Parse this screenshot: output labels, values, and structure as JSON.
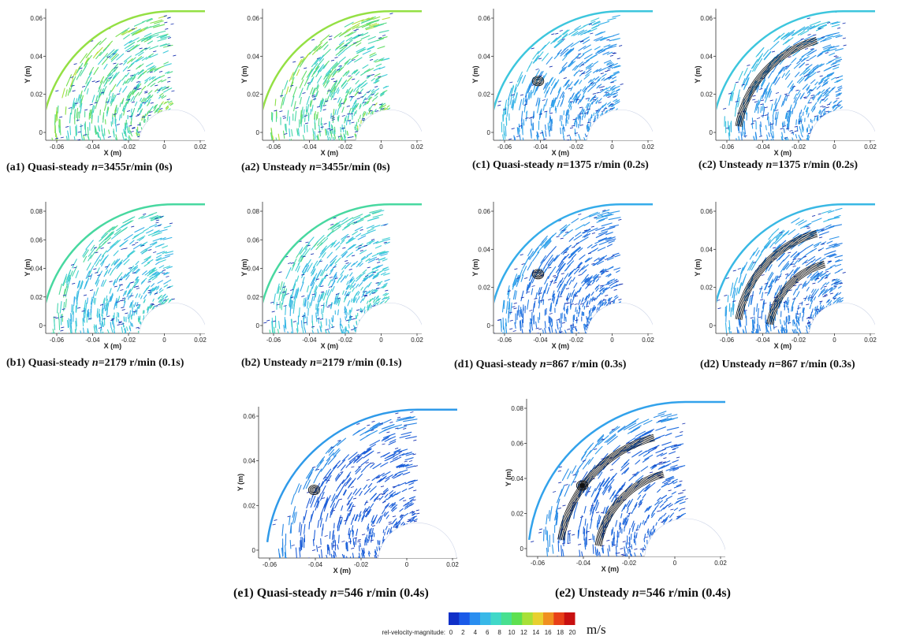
{
  "panels": [
    {
      "id": "a1",
      "label": "(a1) Quasi-steady ",
      "n": "n",
      "value": "=3455r/min  (0s)",
      "ylabel": "Y (m)",
      "xlabel": "X (m)",
      "yticks": [
        "0.06",
        "0.04",
        "0.02",
        "0"
      ],
      "xticks": [
        "-0.06",
        "-0.04",
        "-0.02",
        "0",
        "0.02"
      ],
      "speed": 0.75,
      "vortex": 0,
      "separation": 0
    },
    {
      "id": "a2",
      "label": "(a2) Unsteady ",
      "n": "n",
      "value": "=3455r/min (0s)",
      "ylabel": "Y (m)",
      "xlabel": "X (m)",
      "yticks": [
        "0.06",
        "0.04",
        "0.02",
        "0"
      ],
      "xticks": [
        "-0.06",
        "-0.04",
        "-0.02",
        "0",
        "0.02"
      ],
      "speed": 0.75,
      "vortex": 0,
      "separation": 0
    },
    {
      "id": "c1",
      "label": "(c1) Quasi-steady ",
      "n": "n",
      "value": "=1375 r/min (0.2s)",
      "ylabel": "Y (m)",
      "xlabel": "X (m)",
      "yticks": [
        "0.06",
        "0.04",
        "0.02",
        "0"
      ],
      "xticks": [
        "-0.06",
        "-0.04",
        "-0.02",
        "0",
        "0.02"
      ],
      "speed": 0.35,
      "vortex": 1,
      "separation": 0
    },
    {
      "id": "c2",
      "label": "(c2) Unsteady ",
      "n": "n",
      "value": "=1375 r/min (0.2s)",
      "ylabel": "Y (m)",
      "xlabel": "X (m)",
      "yticks": [
        "0.06",
        "0.04",
        "0.02",
        "0"
      ],
      "xticks": [
        "-0.06",
        "-0.04",
        "-0.02",
        "0",
        "0.02"
      ],
      "speed": 0.35,
      "vortex": 0,
      "separation": 1
    },
    {
      "id": "b1",
      "label": "(b1) Quasi-steady ",
      "n": "n",
      "value": "=2179 r/min (0.1s)",
      "ylabel": "Y (m)",
      "xlabel": "X (m)",
      "yticks": [
        "0.08",
        "0.06",
        "0.04",
        "0.02",
        "0"
      ],
      "xticks": [
        "-0.06",
        "-0.04",
        "-0.02",
        "0",
        "0.02"
      ],
      "speed": 0.55,
      "vortex": 0,
      "separation": 0
    },
    {
      "id": "b2",
      "label": "(b2) Unsteady ",
      "n": "n",
      "value": "=2179 r/min (0.1s)",
      "ylabel": "Y (m)",
      "xlabel": "X (m)",
      "yticks": [
        "0.08",
        "0.06",
        "0.04",
        "0.02",
        "0"
      ],
      "xticks": [
        "-0.06",
        "-0.04",
        "-0.02",
        "0",
        "0.02"
      ],
      "speed": 0.55,
      "vortex": 0,
      "separation": 0
    },
    {
      "id": "d1",
      "label": "(d1) Quasi-steady ",
      "n": "n",
      "value": "=867 r/min (0.3s)",
      "ylabel": "Y (m)",
      "xlabel": "X (m)",
      "yticks": [
        "0.06",
        "0.04",
        "0.02",
        "0"
      ],
      "xticks": [
        "-0.06",
        "-0.04",
        "-0.02",
        "0",
        "0.02"
      ],
      "speed": 0.22,
      "vortex": 1,
      "separation": 0
    },
    {
      "id": "d2",
      "label": "(d2) Unsteady ",
      "n": "n",
      "value": "=867 r/min (0.3s)",
      "ylabel": "Y (m)",
      "xlabel": "X (m)",
      "yticks": [
        "0.06",
        "0.04",
        "0.02",
        "0"
      ],
      "xticks": [
        "-0.06",
        "-0.04",
        "-0.02",
        "0",
        "0.02"
      ],
      "speed": 0.28,
      "vortex": 0,
      "separation": 2
    },
    {
      "id": "e1",
      "label": "(e1) Quasi-steady ",
      "n": "n",
      "value": "=546 r/min (0.4s)",
      "ylabel": "Y (m)",
      "xlabel": "X (m)",
      "yticks": [
        "0.06",
        "0.04",
        "0.02",
        "0"
      ],
      "xticks": [
        "-0.06",
        "-0.04",
        "-0.02",
        "0",
        "0.02"
      ],
      "speed": 0.15,
      "vortex": 1,
      "separation": 0
    },
    {
      "id": "e2",
      "label": "(e2) Unsteady ",
      "n": "n",
      "value": "=546 r/min (0.4s)",
      "ylabel": "Y (m)",
      "xlabel": "X (m)",
      "yticks": [
        "0.08",
        "0.06",
        "0.04",
        "0.02",
        "0"
      ],
      "xticks": [
        "-0.06",
        "-0.04",
        "-0.02",
        "0",
        "0.02"
      ],
      "speed": 0.18,
      "vortex": 2,
      "separation": 2
    }
  ],
  "colorbar": {
    "label": "rel-velocity-magnitude:",
    "ticks": [
      "0",
      "2",
      "4",
      "6",
      "8",
      "10",
      "12",
      "14",
      "16",
      "18",
      "20"
    ],
    "unit": "m/s",
    "colors": [
      "#1030c8",
      "#1a5ae8",
      "#2a8ef0",
      "#38b8e8",
      "#40d8c8",
      "#48e090",
      "#5ee050",
      "#a8e038",
      "#e8d030",
      "#f09020",
      "#e84018",
      "#c81010"
    ]
  }
}
